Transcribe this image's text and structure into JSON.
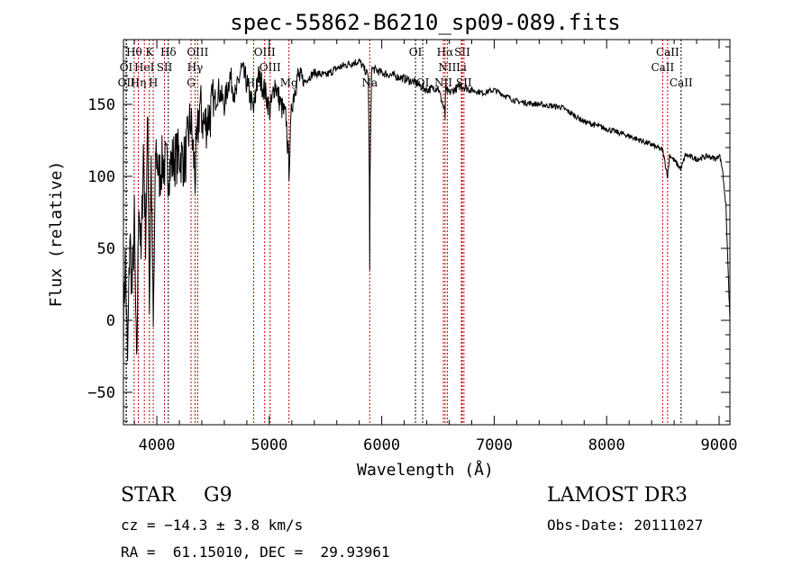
{
  "chart_data": {
    "type": "line",
    "title": "spec-55862-B6210_sp09-089.fits",
    "xlabel": "Wavelength (Å)",
    "ylabel": "Flux (relative)",
    "xlim": [
      3703,
      9096
    ],
    "ylim": [
      -72.5,
      195
    ],
    "xticks": [
      4000,
      5000,
      6000,
      7000,
      8000,
      9000
    ],
    "yticks": [
      -50,
      0,
      50,
      100,
      150
    ],
    "grid": false,
    "series": [
      {
        "name": "spectrum",
        "x": [
          3703,
          3720,
          3740,
          3760,
          3780,
          3800,
          3820,
          3840,
          3860,
          3880,
          3900,
          3920,
          3934,
          3950,
          3968,
          3990,
          4020,
          4050,
          4100,
          4150,
          4200,
          4250,
          4300,
          4340,
          4380,
          4420,
          4480,
          4550,
          4600,
          4650,
          4700,
          4750,
          4800,
          4861,
          4900,
          4959,
          5007,
          5050,
          5100,
          5150,
          5175,
          5200,
          5250,
          5300,
          5400,
          5500,
          5600,
          5700,
          5800,
          5880,
          5890,
          5893,
          5896,
          5910,
          6000,
          6100,
          6200,
          6300,
          6400,
          6500,
          6560,
          6563,
          6566,
          6600,
          6700,
          6800,
          6900,
          7000,
          7200,
          7400,
          7600,
          7800,
          8000,
          8200,
          8400,
          8498,
          8542,
          8560,
          8662,
          8700,
          8800,
          8900,
          8980,
          9000,
          9030,
          9060,
          9096
        ],
        "y": [
          0,
          40,
          -30,
          60,
          20,
          70,
          -40,
          90,
          40,
          120,
          60,
          140,
          10,
          110,
          -10,
          120,
          100,
          110,
          105,
          112,
          115,
          110,
          140,
          100,
          150,
          135,
          145,
          160,
          150,
          170,
          155,
          175,
          165,
          145,
          170,
          160,
          145,
          165,
          150,
          140,
          105,
          150,
          170,
          165,
          172,
          170,
          175,
          178,
          180,
          170,
          100,
          33,
          100,
          175,
          172,
          170,
          168,
          165,
          160,
          162,
          145,
          140,
          160,
          158,
          163,
          160,
          158,
          160,
          152,
          150,
          148,
          138,
          133,
          128,
          122,
          118,
          100,
          115,
          105,
          115,
          112,
          114,
          112,
          116,
          105,
          80,
          0
        ]
      }
    ],
    "lines": [
      {
        "label": "Hθ",
        "wl": 3798,
        "row": 0,
        "color": "#c00000"
      },
      {
        "label": "K",
        "wl": 3934,
        "row": 0,
        "color": "#c00000"
      },
      {
        "label": "Hδ",
        "wl": 4102,
        "row": 0,
        "color": "#000000"
      },
      {
        "label": "OIII",
        "wl": 4363,
        "row": 0,
        "color": "#c00000"
      },
      {
        "label": "OIII",
        "wl": 4959,
        "row": 0,
        "color": "#c00000"
      },
      {
        "label": "OI",
        "wl": 6300,
        "row": 0,
        "color": "#000000"
      },
      {
        "label": "Hα",
        "wl": 6563,
        "row": 0,
        "color": "#c00000"
      },
      {
        "label": "SII",
        "wl": 6716,
        "row": 0,
        "color": "#c00000"
      },
      {
        "label": "CaII",
        "wl": 8542,
        "row": 0,
        "color": "#c00000"
      },
      {
        "label": "OI",
        "wl": 3727,
        "row": 1,
        "color": "#000000"
      },
      {
        "label": "HeI",
        "wl": 3889,
        "row": 1,
        "color": "#c00000"
      },
      {
        "label": "SII",
        "wl": 4068,
        "row": 1,
        "color": "#c00000"
      },
      {
        "label": "Hγ",
        "wl": 4340,
        "row": 1,
        "color": "#c00000"
      },
      {
        "label": "OIII",
        "wl": 5007,
        "row": 1,
        "color": "#c00000"
      },
      {
        "label": "NII",
        "wl": 6583,
        "row": 1,
        "color": "#c00000"
      },
      {
        "label": "Li",
        "wl": 6708,
        "row": 1,
        "color": "#c00000"
      },
      {
        "label": "CaII",
        "wl": 8498,
        "row": 1,
        "color": "#c00000"
      },
      {
        "label": "OII",
        "wl": 3729,
        "row": 2,
        "color": "#000000"
      },
      {
        "label": "Hη",
        "wl": 3835,
        "row": 2,
        "color": "#c00000"
      },
      {
        "label": "H",
        "wl": 3968,
        "row": 2,
        "color": "#c00000"
      },
      {
        "label": "G",
        "wl": 4304,
        "row": 2,
        "color": "#c00000"
      },
      {
        "label": "Hβ",
        "wl": 4861,
        "row": 2,
        "color": "#c00000"
      },
      {
        "label": "Mg",
        "wl": 5175,
        "row": 2,
        "color": "#c00000"
      },
      {
        "label": "Na",
        "wl": 5893,
        "row": 2,
        "color": "#c00000"
      },
      {
        "label": "OI",
        "wl": 6364,
        "row": 2,
        "color": "#000000"
      },
      {
        "label": "NII",
        "wl": 6548,
        "row": 2,
        "color": "#c00000"
      },
      {
        "label": "SII",
        "wl": 6731,
        "row": 2,
        "color": "#c00000"
      },
      {
        "label": "CaII",
        "wl": 8662,
        "row": 2,
        "color": "#000000"
      }
    ]
  },
  "info": {
    "class": "STAR",
    "subclass": "G9",
    "survey": "LAMOST DR3",
    "cz": "cz = −14.3 ± 3.8 km/s",
    "obs_date": "Obs-Date: 20111027",
    "coords": "RA =  61.15010, DEC =  29.93961"
  }
}
